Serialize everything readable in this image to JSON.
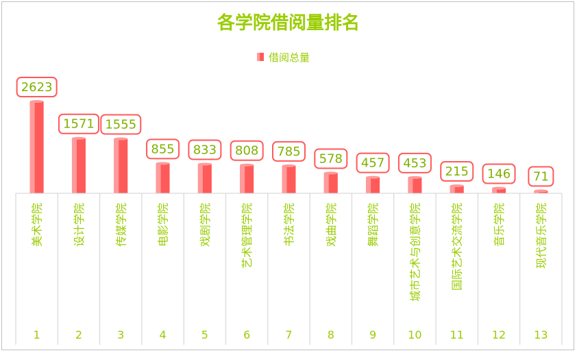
{
  "chart_data": {
    "type": "bar",
    "title": "各学院借阅量排名",
    "legend": {
      "position": "top",
      "entries": [
        "借阅总量"
      ]
    },
    "series": [
      {
        "name": "借阅总量",
        "values": [
          2623,
          1571,
          1555,
          855,
          833,
          808,
          785,
          578,
          457,
          453,
          215,
          146,
          71
        ]
      }
    ],
    "categories": [
      "美术学院",
      "设计学院",
      "传媒学院",
      "电影学院",
      "戏剧学院",
      "艺术管理学院",
      "书法学院",
      "戏曲学院",
      "舞蹈学院",
      "城市艺术与创意学院",
      "国际艺术交流学院",
      "音乐学院",
      "现代音乐学院"
    ],
    "table_row": [
      "1",
      "2",
      "3",
      "4",
      "5",
      "6",
      "7",
      "8",
      "9",
      "10",
      "11",
      "12",
      "13"
    ],
    "ylim": [
      0,
      2623
    ],
    "grid": false,
    "colors": {
      "bar_front": "#FF5A5A",
      "bar_side": "#FF9A9A",
      "text": "#9ACD00",
      "label_border": "#FF5A5A",
      "table_line": "#d0d0d0"
    }
  }
}
